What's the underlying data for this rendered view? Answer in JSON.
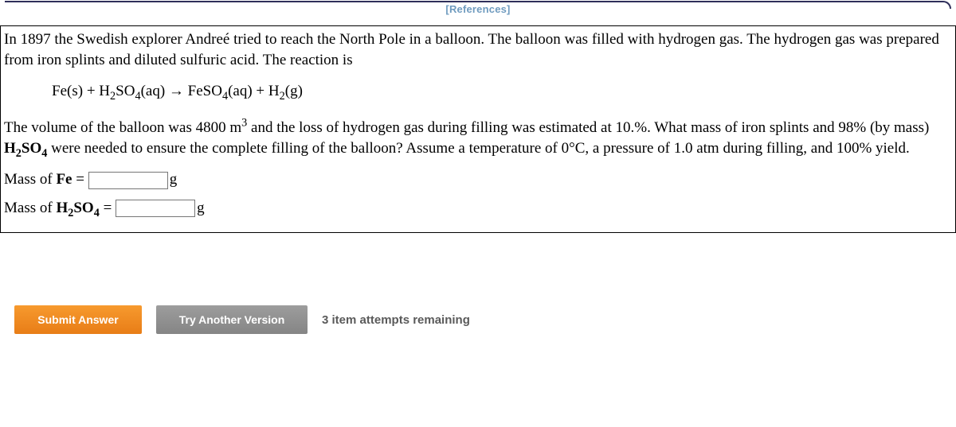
{
  "references": {
    "label": "[References]"
  },
  "question": {
    "intro": "In 1897 the Swedish explorer Andreé tried to reach the North Pole in a balloon. The balloon was filled with hydrogen gas. The hydrogen gas was prepared from iron splints and diluted sulfuric acid. The reaction is",
    "equation": {
      "lhs1": "Fe(s)",
      "plus": " + ",
      "lhs2_pre": "H",
      "lhs2_sub": "2",
      "lhs2_mid": "SO",
      "lhs2_sub2": "4",
      "lhs2_post": "(aq)",
      "arrow": " → ",
      "rhs1_pre": "FeSO",
      "rhs1_sub": "4",
      "rhs1_post": "(aq)",
      "rhs2_pre": "H",
      "rhs2_sub": "2",
      "rhs2_post": "(g)"
    },
    "body_a": "The volume of the balloon was 4800 ",
    "body_unit": "m",
    "body_sup": "3",
    "body_b": " and the loss of hydrogen gas during filling was estimated at 10.%. What mass of iron splints and 98% (by mass) ",
    "body_h2so4_pre": "H",
    "body_h2so4_s1": "2",
    "body_h2so4_mid": "SO",
    "body_h2so4_s2": "4",
    "body_c": " were needed to ensure the complete filling of the balloon? Assume a temperature of 0°C, a pressure of 1.0 atm during filling, and 100% yield."
  },
  "answers": {
    "fe": {
      "label_pre": "Mass of ",
      "label_sym": "Fe",
      "label_post": " = ",
      "value": "",
      "unit": "g"
    },
    "h2so4": {
      "label_pre": "Mass of ",
      "sym_pre": "H",
      "sym_s1": "2",
      "sym_mid": "SO",
      "sym_s2": "4",
      "label_post": " = ",
      "value": "",
      "unit": "g"
    }
  },
  "buttons": {
    "submit": "Submit Answer",
    "try": "Try Another Version"
  },
  "attempts": "3 item attempts remaining",
  "colors": {
    "submit_bg": "#ef8623",
    "try_bg": "#8e8e8e",
    "references": "#6f9bbf",
    "rule": "#2f2f5a"
  }
}
